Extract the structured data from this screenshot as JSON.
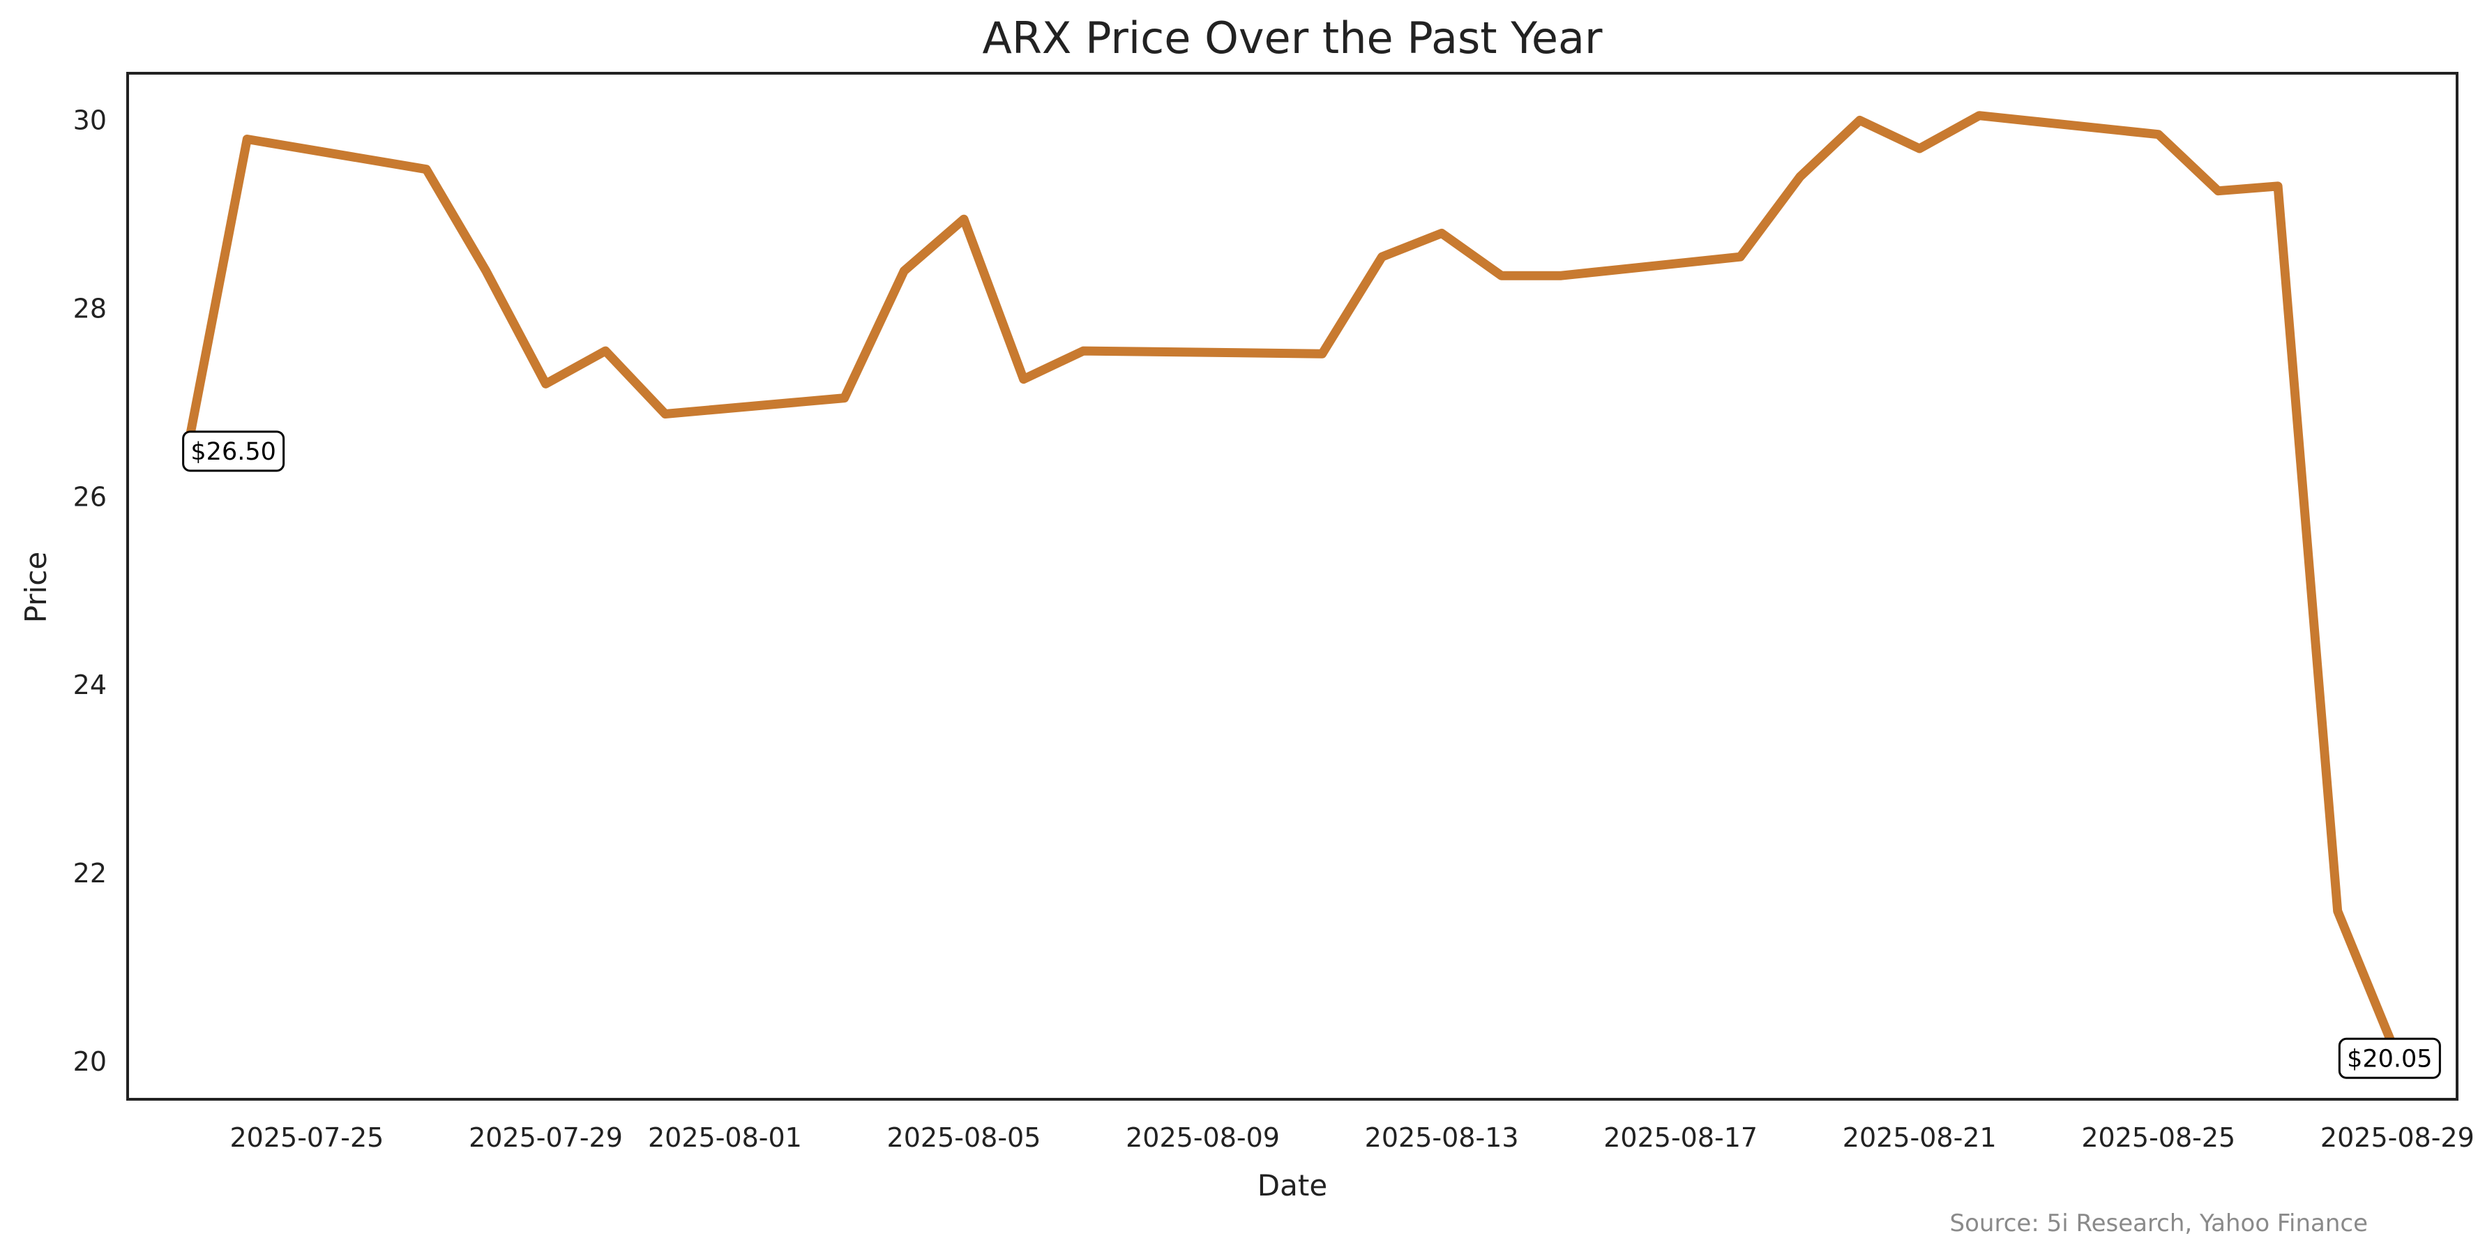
{
  "chart_data": {
    "type": "line",
    "title": "ARX Price Over the Past Year",
    "xlabel": "Date",
    "ylabel": "Price",
    "source": "Source: 5i Research, Yahoo Finance",
    "color": "#C87A30",
    "grid": false,
    "xlim": [
      "2025-07-22",
      "2025-08-30"
    ],
    "ylim": [
      19.6,
      30.5
    ],
    "x_ticks": [
      "2025-07-25",
      "2025-07-29",
      "2025-08-01",
      "2025-08-05",
      "2025-08-09",
      "2025-08-13",
      "2025-08-17",
      "2025-08-21",
      "2025-08-25",
      "2025-08-29"
    ],
    "y_ticks": [
      20,
      22,
      24,
      26,
      28,
      30
    ],
    "series": [
      {
        "x": [
          "2025-07-23",
          "2025-07-24",
          "2025-07-27",
          "2025-07-28",
          "2025-07-29",
          "2025-07-30",
          "2025-07-31",
          "2025-08-03",
          "2025-08-04",
          "2025-08-05",
          "2025-08-06",
          "2025-08-07",
          "2025-08-11",
          "2025-08-12",
          "2025-08-13",
          "2025-08-14",
          "2025-08-15",
          "2025-08-18",
          "2025-08-19",
          "2025-08-20",
          "2025-08-21",
          "2025-08-22",
          "2025-08-25",
          "2025-08-26",
          "2025-08-27",
          "2025-08-28",
          "2025-08-29"
        ],
        "values": [
          26.5,
          29.8,
          29.48,
          28.4,
          27.2,
          27.55,
          26.88,
          27.05,
          28.4,
          28.95,
          27.25,
          27.55,
          27.52,
          28.55,
          28.8,
          28.35,
          28.35,
          28.55,
          29.4,
          30.0,
          29.7,
          30.05,
          29.85,
          29.25,
          29.3,
          21.6,
          20.05
        ]
      }
    ],
    "annotations": [
      {
        "x": "2025-07-23",
        "y": 26.5,
        "text": "$26.50"
      },
      {
        "x": "2025-08-29",
        "y": 20.05,
        "text": "$20.05"
      }
    ]
  }
}
